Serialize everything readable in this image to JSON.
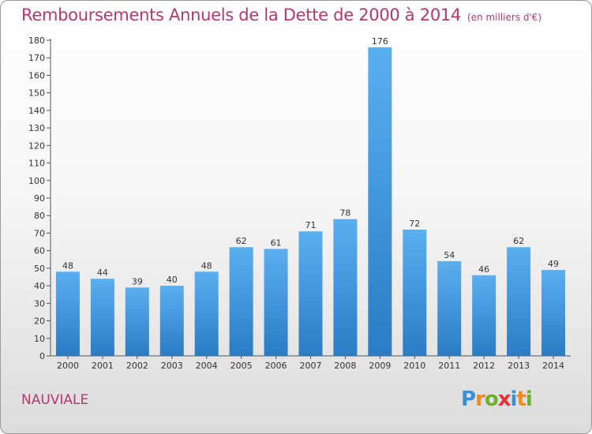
{
  "title": "Remboursements Annuels de la Dette de 2000 à 2014",
  "subtitle": "(en milliers d'€)",
  "commune": "NAUVIALE",
  "logo": {
    "text": "Proxiti",
    "letters": [
      {
        "ch": "P",
        "color": "#3a8fd6"
      },
      {
        "ch": "r",
        "color": "#f08a1c"
      },
      {
        "ch": "o",
        "color": "#6bb32e"
      },
      {
        "ch": "x",
        "color": "#e8303a"
      },
      {
        "ch": "i",
        "color": "#3a8fd6"
      },
      {
        "ch": "t",
        "color": "#f08a1c"
      },
      {
        "ch": "i",
        "color": "#6bb32e"
      }
    ]
  },
  "chart_data": {
    "type": "bar",
    "categories": [
      "2000",
      "2001",
      "2002",
      "2003",
      "2004",
      "2005",
      "2006",
      "2007",
      "2008",
      "2009",
      "2010",
      "2011",
      "2012",
      "2013",
      "2014"
    ],
    "values": [
      48,
      44,
      39,
      40,
      48,
      62,
      61,
      71,
      78,
      176,
      72,
      54,
      46,
      62,
      49
    ],
    "ylim": [
      0,
      180
    ],
    "yticks": [
      0,
      10,
      20,
      30,
      40,
      50,
      60,
      70,
      80,
      90,
      100,
      110,
      120,
      130,
      140,
      150,
      160,
      170,
      180
    ],
    "grid": false,
    "bar_color_top": "#5aaff0",
    "bar_color_bottom": "#2a7cc4"
  }
}
